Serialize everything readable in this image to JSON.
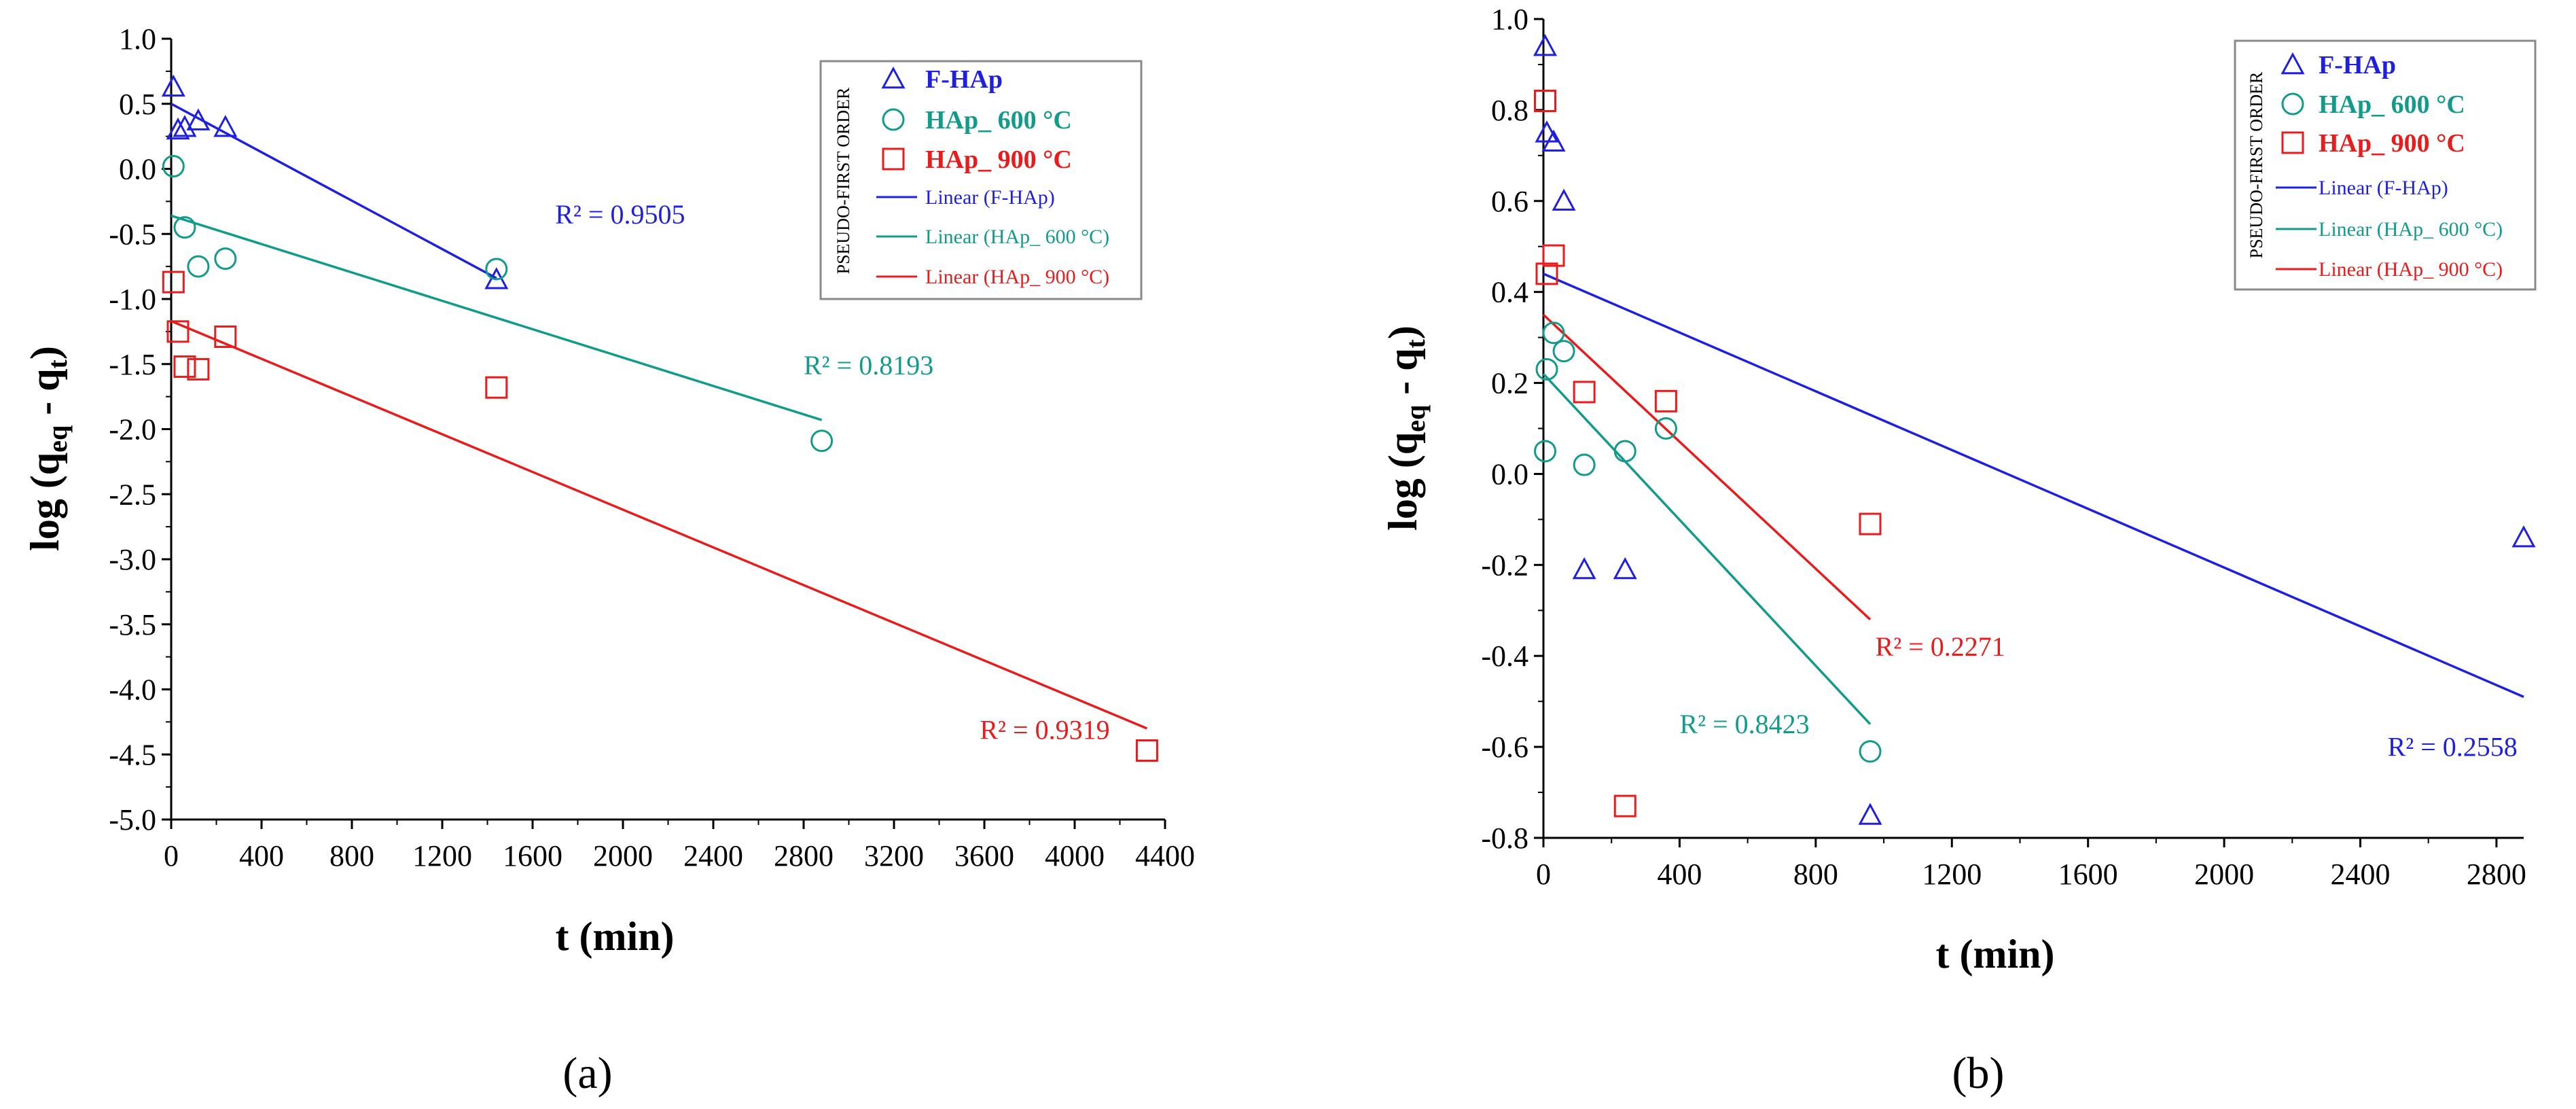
{
  "figure": {
    "panel_labels": [
      "(a)",
      "(b)"
    ]
  },
  "colors": {
    "F-HAp": "#1f1fe0",
    "HAp_600": "#129a8a",
    "HAp_900": "#e81c1c"
  },
  "chart_data": [
    {
      "type": "scatter",
      "panel": "a",
      "title": "",
      "xlabel": "t (min)",
      "ylabel_main": "log (q",
      "ylabel_sub1": "eq",
      "ylabel_mid": " - q",
      "ylabel_sub2": "t",
      "ylabel_end": ")",
      "xlim": [
        0,
        4400
      ],
      "ylim": [
        -5.0,
        1.0
      ],
      "xticks": [
        0,
        400,
        800,
        1200,
        1600,
        2000,
        2400,
        2800,
        3200,
        3600,
        4000,
        4400
      ],
      "xtick_labels": [
        "0",
        "400",
        "800",
        "1200",
        "1600",
        "2000",
        "2400",
        "2800",
        "3200",
        "3600",
        "4000",
        "4400"
      ],
      "yticks": [
        1.0,
        0.5,
        0.0,
        -0.5,
        -1.0,
        -1.5,
        -2.0,
        -2.5,
        -3.0,
        -3.5,
        -4.0,
        -4.5,
        -5.0
      ],
      "ytick_labels": [
        "1.0",
        "0.5",
        "0.0",
        "-0.5",
        "-1.0",
        "-1.5",
        "-2.0",
        "-2.5",
        "-3.0",
        "-3.5",
        "-4.0",
        "-4.5",
        "-5.0"
      ],
      "legend": {
        "position": "top-right",
        "rotated_title": "PSEUDO-FIRST ORDER",
        "entries": [
          "F-HAp",
          "HAp_ 600 °C",
          "HAp_ 900 °C",
          "Linear (F-HAp)",
          "Linear (HAp_ 600 °C)",
          "Linear (HAp_ 900 °C)"
        ]
      },
      "series": [
        {
          "name": "F-HAp",
          "marker": "triangle",
          "color_key": "F-HAp",
          "x": [
            10,
            30,
            60,
            120,
            240,
            1440
          ],
          "y": [
            0.63,
            0.3,
            0.32,
            0.37,
            0.32,
            -0.85
          ],
          "fit": {
            "x": [
              0,
              1440
            ],
            "y": [
              0.5,
              -0.84
            ]
          },
          "r2_label": "R² = 0.9505",
          "r2_at": [
            1700,
            -0.42
          ]
        },
        {
          "name": "HAp_ 600 °C",
          "marker": "circle",
          "color_key": "HAp_600",
          "x": [
            10,
            60,
            120,
            240,
            1440,
            2880
          ],
          "y": [
            0.02,
            -0.45,
            -0.75,
            -0.69,
            -0.77,
            -2.09
          ],
          "fit": {
            "x": [
              0,
              2880
            ],
            "y": [
              -0.36,
              -1.93
            ]
          },
          "r2_label": "R² = 0.8193",
          "r2_at": [
            2800,
            -1.58
          ]
        },
        {
          "name": "HAp_ 900 °C",
          "marker": "square",
          "color_key": "HAp_900",
          "x": [
            10,
            30,
            60,
            120,
            240,
            1440,
            4320
          ],
          "y": [
            -0.87,
            -1.25,
            -1.52,
            -1.54,
            -1.29,
            -1.68,
            -4.47
          ],
          "fit": {
            "x": [
              0,
              4320
            ],
            "y": [
              -1.17,
              -4.3
            ]
          },
          "r2_label": "R² = 0.9319",
          "r2_at": [
            3580,
            -4.38
          ]
        }
      ]
    },
    {
      "type": "scatter",
      "panel": "b",
      "title": "",
      "xlabel": "t (min)",
      "ylabel_main": "log (q",
      "ylabel_sub1": "eq",
      "ylabel_mid": " - q",
      "ylabel_sub2": "t",
      "ylabel_end": ")",
      "xlim": [
        0,
        2880
      ],
      "ylim": [
        -0.8,
        1.0
      ],
      "xticks": [
        0,
        400,
        800,
        1200,
        1600,
        2000,
        2400,
        2800
      ],
      "xtick_labels": [
        "0",
        "400",
        "800",
        "1200",
        "1600",
        "2000",
        "2400",
        "2800"
      ],
      "yticks": [
        1.0,
        0.8,
        0.6,
        0.4,
        0.2,
        0.0,
        -0.2,
        -0.4,
        -0.6,
        -0.8
      ],
      "ytick_labels": [
        "1.0",
        "0.8",
        "0.6",
        "0.4",
        "0.2",
        "0.0",
        "-0.2",
        "-0.4",
        "-0.6",
        "-0.8"
      ],
      "legend": {
        "position": "top-right",
        "rotated_title": "PSEUDO-FIRST ORDER",
        "entries": [
          "F-HAp",
          "HAp_ 600 °C",
          "HAp_ 900 °C",
          "Linear (F-HAp)",
          "Linear (HAp_ 600 °C)",
          "Linear (HAp_ 900 °C)"
        ]
      },
      "series": [
        {
          "name": "F-HAp",
          "marker": "triangle",
          "color_key": "F-HAp",
          "x": [
            5,
            10,
            30,
            60,
            120,
            240,
            960,
            2880
          ],
          "y": [
            0.94,
            0.75,
            0.73,
            0.6,
            -0.21,
            -0.21,
            -0.75,
            -0.14
          ],
          "fit": {
            "x": [
              0,
              2880
            ],
            "y": [
              0.44,
              -0.49
            ]
          },
          "r2_label": "R² = 0.2558",
          "r2_at": [
            2480,
            -0.62
          ]
        },
        {
          "name": "HAp_ 600 °C",
          "marker": "circle",
          "color_key": "HAp_600",
          "x": [
            5,
            10,
            30,
            60,
            120,
            240,
            360,
            960
          ],
          "y": [
            0.05,
            0.23,
            0.31,
            0.27,
            0.02,
            0.05,
            0.1,
            -0.61
          ],
          "fit": {
            "x": [
              0,
              960
            ],
            "y": [
              0.22,
              -0.55
            ]
          },
          "r2_label": "R² = 0.8423",
          "r2_at": [
            400,
            -0.57
          ]
        },
        {
          "name": "HAp_ 900 °C",
          "marker": "square",
          "color_key": "HAp_900",
          "x": [
            5,
            10,
            30,
            120,
            240,
            360,
            960
          ],
          "y": [
            0.82,
            0.44,
            0.48,
            0.18,
            -0.73,
            0.16,
            -0.11
          ],
          "fit": {
            "x": [
              0,
              960
            ],
            "y": [
              0.35,
              -0.32
            ]
          },
          "r2_label": "R² = 0.2271",
          "r2_at": [
            975,
            -0.4
          ]
        }
      ]
    }
  ]
}
